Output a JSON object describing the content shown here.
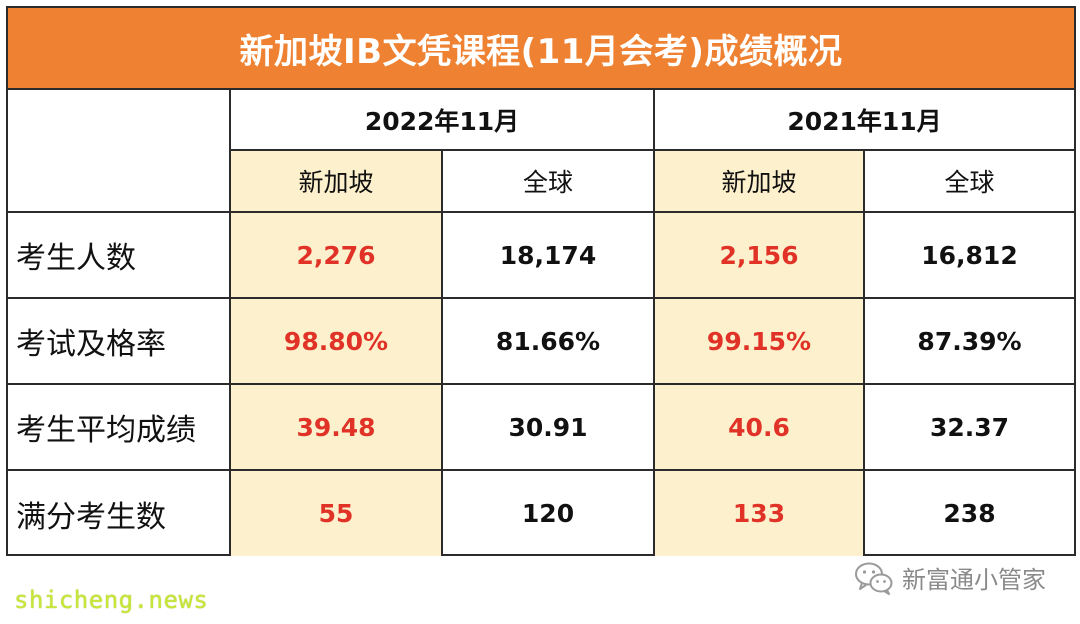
{
  "title": "新加坡IB文凭课程(11月会考)成绩概况",
  "periods": [
    "2022年11月",
    "2021年11月"
  ],
  "regions": [
    "新加坡",
    "全球",
    "新加坡",
    "全球"
  ],
  "rows": [
    {
      "label": "考生人数",
      "values": [
        "2,276",
        "18,174",
        "2,156",
        "16,812"
      ]
    },
    {
      "label": "考试及格率",
      "values": [
        "98.80%",
        "81.66%",
        "99.15%",
        "87.39%"
      ]
    },
    {
      "label": "考生平均成绩",
      "values": [
        "39.48",
        "30.91",
        "40.6",
        "32.37"
      ]
    },
    {
      "label": "满分考生数",
      "values": [
        "55",
        "120",
        "133",
        "238"
      ]
    }
  ],
  "watermark": {
    "text": "新富通小管家",
    "icon": "wechat-icon"
  },
  "site_mark": "shicheng.news",
  "colors": {
    "title_bar": "#ee8232",
    "singapore_text": "#e03226",
    "singapore_fill": "#fdf0cc",
    "border": "#2b2b2b"
  }
}
